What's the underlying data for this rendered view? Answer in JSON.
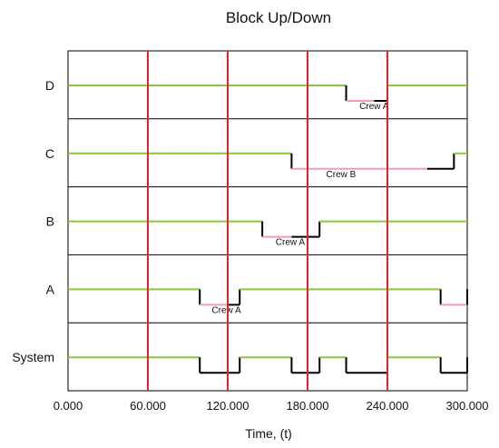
{
  "chart_data": {
    "type": "line",
    "title": "Block Up/Down",
    "xlabel": "Time, (t)",
    "xlim": [
      0,
      300
    ],
    "xticks": [
      0,
      60,
      120,
      180,
      240,
      300
    ],
    "xtick_labels": [
      "0.000",
      "60.000",
      "120.000",
      "180.000",
      "240.000",
      "300.000"
    ],
    "vertical_markers": [
      60,
      120,
      180,
      240
    ],
    "rows": [
      {
        "name": "D",
        "segments": [
          {
            "start": 0,
            "end": 209,
            "state": "up"
          },
          {
            "start": 209,
            "end": 230,
            "state": "repair"
          },
          {
            "start": 230,
            "end": 240,
            "state": "down"
          },
          {
            "start": 240,
            "end": 300,
            "state": "up"
          }
        ],
        "annotations": [
          {
            "text": "Crew A",
            "x": 219
          }
        ]
      },
      {
        "name": "C",
        "segments": [
          {
            "start": 0,
            "end": 168,
            "state": "up"
          },
          {
            "start": 168,
            "end": 270,
            "state": "repair"
          },
          {
            "start": 270,
            "end": 290,
            "state": "down"
          },
          {
            "start": 290,
            "end": 300,
            "state": "up"
          }
        ],
        "annotations": [
          {
            "text": "Crew B",
            "x": 194
          }
        ]
      },
      {
        "name": "B",
        "segments": [
          {
            "start": 0,
            "end": 146,
            "state": "up"
          },
          {
            "start": 146,
            "end": 168,
            "state": "repair"
          },
          {
            "start": 168,
            "end": 189,
            "state": "down"
          },
          {
            "start": 189,
            "end": 300,
            "state": "up"
          }
        ],
        "annotations": [
          {
            "text": "Crew A",
            "x": 156
          }
        ]
      },
      {
        "name": "A",
        "segments": [
          {
            "start": 0,
            "end": 99,
            "state": "up"
          },
          {
            "start": 99,
            "end": 120,
            "state": "repair"
          },
          {
            "start": 120,
            "end": 129,
            "state": "down"
          },
          {
            "start": 129,
            "end": 280,
            "state": "up"
          },
          {
            "start": 280,
            "end": 300,
            "state": "repair"
          }
        ],
        "annotations": [
          {
            "text": "Crew A",
            "x": 108
          }
        ]
      },
      {
        "name": "System",
        "segments": [
          {
            "start": 0,
            "end": 99,
            "state": "up"
          },
          {
            "start": 99,
            "end": 129,
            "state": "down"
          },
          {
            "start": 129,
            "end": 168,
            "state": "up"
          },
          {
            "start": 168,
            "end": 189,
            "state": "down"
          },
          {
            "start": 189,
            "end": 209,
            "state": "up"
          },
          {
            "start": 209,
            "end": 240,
            "state": "down"
          },
          {
            "start": 240,
            "end": 280,
            "state": "up"
          },
          {
            "start": 280,
            "end": 300,
            "state": "down"
          }
        ],
        "annotations": []
      }
    ],
    "colors": {
      "up": "#8cc63f",
      "repair": "#f49ac1",
      "down": "#000000",
      "markers": "#e0242c"
    },
    "grid": false,
    "legend": "none"
  }
}
